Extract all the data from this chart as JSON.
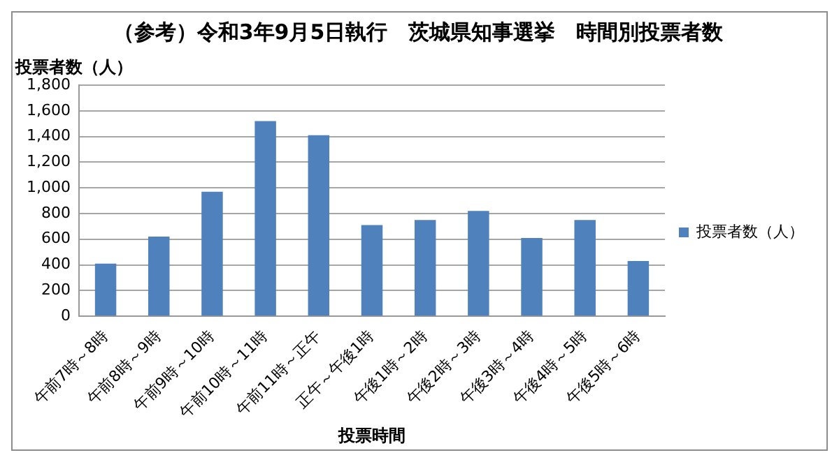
{
  "chart_data": {
    "type": "bar",
    "title": "（参考）令和3年9月5日執行　茨城県知事選挙　時間別投票者数",
    "xlabel": "投票時間",
    "ylabel": "投票者数（人）",
    "categories": [
      "午前7時～8時",
      "午前8時～9時",
      "午前9時～10時",
      "午前10時～11時",
      "午前11時～正午",
      "正午～午後1時",
      "午後1時～2時",
      "午後2時～3時",
      "午後3時～4時",
      "午後4時～5時",
      "午後5時～6時"
    ],
    "series": [
      {
        "name": "投票者数（人）",
        "color": "#4f81bd",
        "values": [
          410,
          620,
          970,
          1520,
          1410,
          710,
          750,
          820,
          610,
          750,
          430
        ]
      }
    ],
    "ylim": [
      0,
      1800
    ],
    "yticks": [
      0,
      200,
      400,
      600,
      800,
      {
        "value": 1000,
        "label": "1,000"
      },
      {
        "value": 1200,
        "label": "1,200"
      },
      {
        "value": 1400,
        "label": "1,400"
      },
      {
        "value": 1600,
        "label": "1,600"
      },
      {
        "value": 1800,
        "label": "1,800"
      }
    ],
    "grid": "y",
    "legend": "right"
  }
}
